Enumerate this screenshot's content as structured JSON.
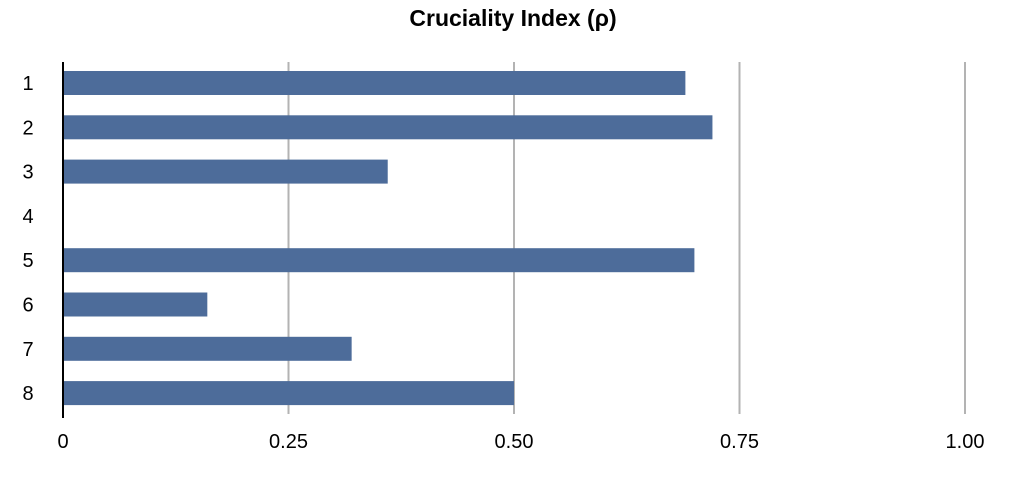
{
  "chart_data": {
    "type": "bar",
    "orientation": "horizontal",
    "title": "Cruciality Index (ρ)",
    "xlabel": "",
    "ylabel": "",
    "categories": [
      "1",
      "2",
      "3",
      "4",
      "5",
      "6",
      "7",
      "8"
    ],
    "series": [
      {
        "values": [
          0.69,
          0.72,
          0.36,
          0,
          0.7,
          0.16,
          0.32,
          0.5
        ]
      }
    ],
    "xlim": [
      0,
      1
    ],
    "x_ticks": [
      "0",
      "0.25",
      "0.50",
      "0.75",
      "1.00"
    ],
    "x_tick_values": [
      0,
      0.25,
      0.5,
      0.75,
      1.0
    ],
    "grid": "vertical",
    "legend": "none",
    "colors": {
      "bar": "#4d6c9a",
      "grid": "#b3b3b3",
      "axis": "#000000",
      "text": "#000000"
    }
  }
}
